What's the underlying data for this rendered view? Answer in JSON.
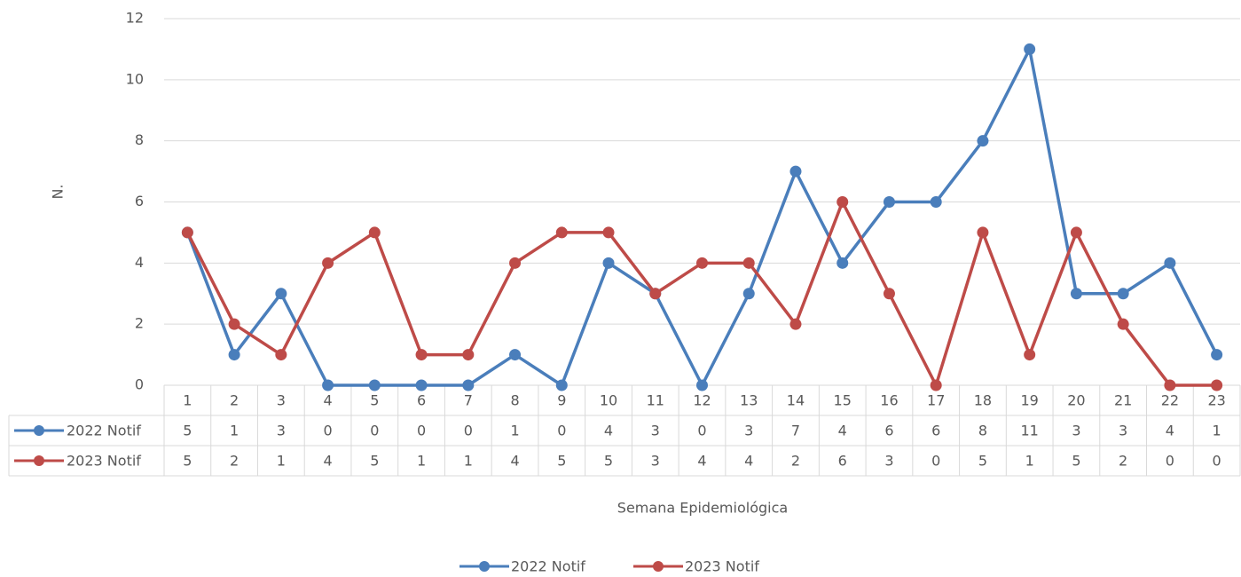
{
  "chart_data": {
    "type": "line",
    "x_label": "Semana Epidemiológica",
    "y_label": "N.",
    "categories": [
      "1",
      "2",
      "3",
      "4",
      "5",
      "6",
      "7",
      "8",
      "9",
      "10",
      "11",
      "12",
      "13",
      "14",
      "15",
      "16",
      "17",
      "18",
      "19",
      "20",
      "21",
      "22",
      "23"
    ],
    "series": [
      {
        "name": "2022 Notif",
        "color": "#4a7ebb",
        "values": [
          5,
          1,
          3,
          0,
          0,
          0,
          0,
          1,
          0,
          4,
          3,
          0,
          3,
          7,
          4,
          6,
          6,
          8,
          11,
          3,
          3,
          4,
          1
        ]
      },
      {
        "name": "2023 Notif",
        "color": "#be4b48",
        "values": [
          5,
          2,
          1,
          4,
          5,
          1,
          1,
          4,
          5,
          5,
          3,
          4,
          4,
          2,
          6,
          3,
          0,
          5,
          1,
          5,
          2,
          0,
          0
        ]
      }
    ],
    "ylim": [
      0,
      12
    ],
    "yticks": [
      0,
      2,
      4,
      6,
      8,
      10,
      12
    ],
    "grid": true,
    "legend": "bottom"
  }
}
